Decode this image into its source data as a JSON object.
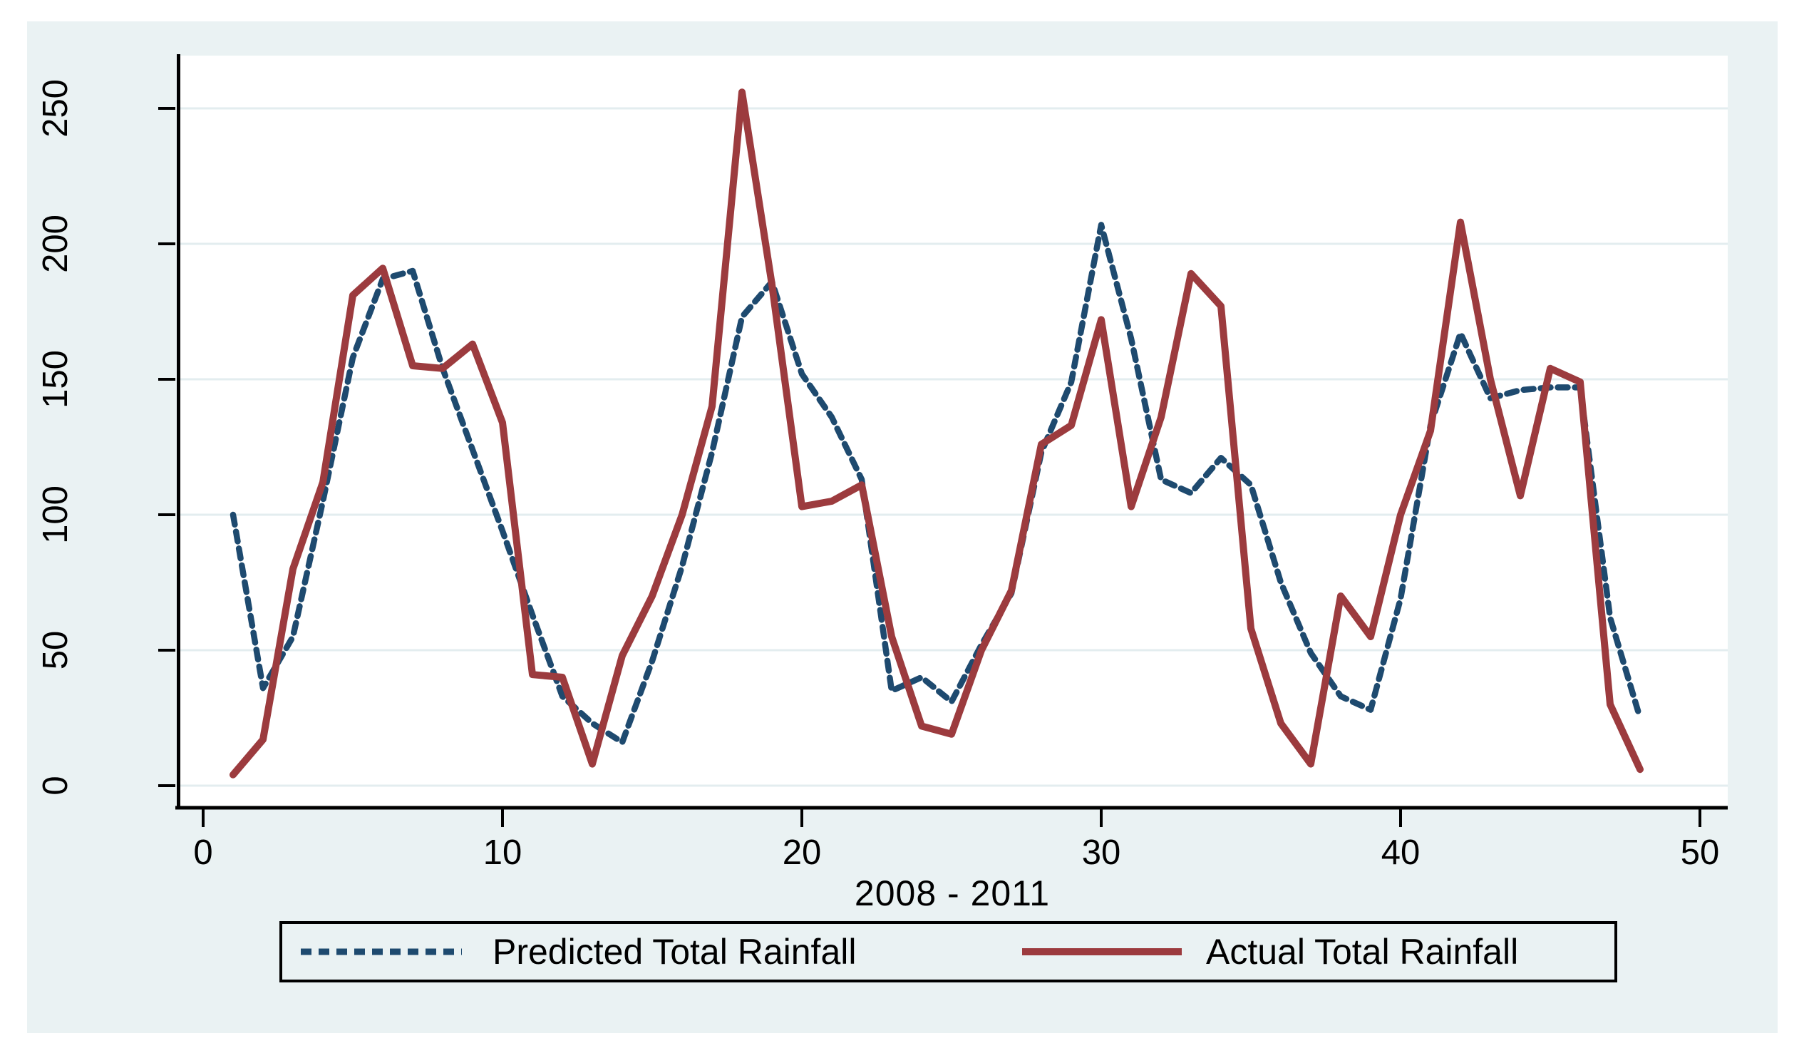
{
  "chart_data": {
    "type": "line",
    "title": "",
    "xlabel": "2008 - 2011",
    "ylabel": "",
    "x": [
      1,
      2,
      3,
      4,
      5,
      6,
      7,
      8,
      9,
      10,
      11,
      12,
      13,
      14,
      15,
      16,
      17,
      18,
      19,
      20,
      21,
      22,
      23,
      24,
      25,
      26,
      27,
      28,
      29,
      30,
      31,
      32,
      33,
      34,
      35,
      36,
      37,
      38,
      39,
      40,
      41,
      42,
      43,
      44,
      45,
      46,
      47,
      48
    ],
    "series": [
      {
        "name": "Predicted Total Rainfall",
        "style": "dashed",
        "color": "#1e4a6f",
        "values": [
          100,
          36,
          55,
          105,
          158,
          187,
          190,
          154,
          124,
          94,
          63,
          33,
          23,
          16,
          46,
          81,
          123,
          173,
          186,
          152,
          136,
          113,
          35,
          40,
          31,
          52,
          71,
          123,
          149,
          207,
          165,
          113,
          108,
          121,
          111,
          75,
          49,
          33,
          28,
          69,
          133,
          167,
          143,
          146,
          147,
          147,
          62,
          25
        ]
      },
      {
        "name": "Actual Total Rainfall",
        "style": "solid",
        "color": "#9c3b3e",
        "values": [
          4,
          17,
          80,
          112,
          181,
          191,
          155,
          154,
          163,
          134,
          41,
          40,
          8,
          48,
          70,
          100,
          140,
          256,
          185,
          103,
          105,
          111,
          55,
          22,
          19,
          50,
          72,
          126,
          133,
          172,
          103,
          136,
          189,
          177,
          58,
          23,
          8,
          70,
          55,
          100,
          131,
          208,
          150,
          107,
          154,
          149,
          30,
          6
        ]
      }
    ],
    "xticks": [
      0,
      10,
      20,
      30,
      40,
      50
    ],
    "yticks": [
      0,
      50,
      100,
      150,
      200,
      250
    ],
    "xlim": [
      -0.9,
      50.9
    ],
    "ylim": [
      -8,
      270
    ],
    "grid": "horizontal",
    "legend_position": "bottom"
  },
  "colors": {
    "panel_background": "#eaf2f3",
    "plot_background": "#ffffff",
    "gridline": "#e3edef",
    "axis": "#000000",
    "predicted_line": "#1e4a6f",
    "actual_line": "#9c3b3e"
  }
}
